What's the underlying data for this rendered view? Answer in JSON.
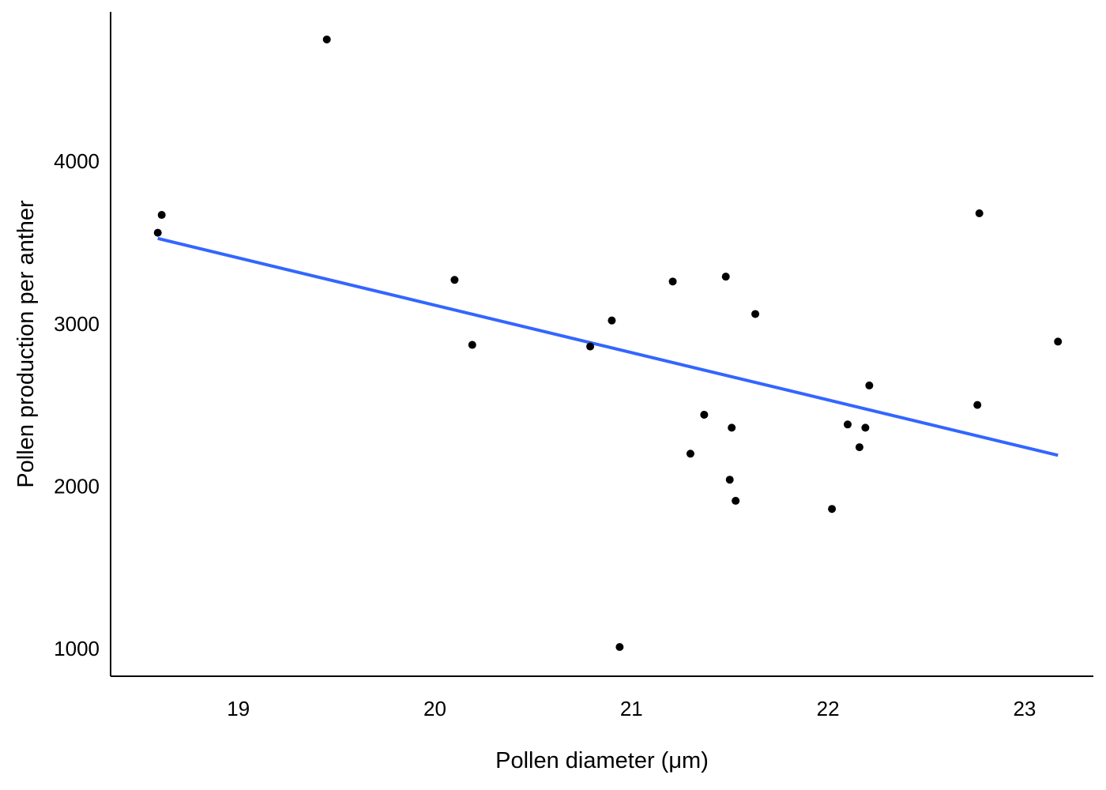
{
  "chart_data": {
    "type": "scatter",
    "title": "",
    "xlabel": "Pollen diameter (μm)",
    "ylabel": "Pollen production per anther",
    "xlim": [
      18.35,
      23.35
    ],
    "ylim": [
      830,
      4920
    ],
    "x_ticks": [
      19,
      20,
      21,
      22,
      23
    ],
    "y_ticks": [
      1000,
      2000,
      3000,
      4000
    ],
    "grid": false,
    "legend": "none",
    "colors": {
      "points": "#000000",
      "trend": "#3366ff"
    },
    "series": [
      {
        "values": [
          {
            "x": 18.59,
            "y": 3560
          },
          {
            "x": 18.61,
            "y": 3670
          },
          {
            "x": 19.45,
            "y": 4750
          },
          {
            "x": 20.1,
            "y": 3270
          },
          {
            "x": 20.19,
            "y": 2870
          },
          {
            "x": 20.79,
            "y": 2860
          },
          {
            "x": 20.9,
            "y": 3020
          },
          {
            "x": 20.94,
            "y": 1010
          },
          {
            "x": 21.21,
            "y": 3260
          },
          {
            "x": 21.3,
            "y": 2200
          },
          {
            "x": 21.37,
            "y": 2440
          },
          {
            "x": 21.48,
            "y": 3290
          },
          {
            "x": 21.5,
            "y": 2040
          },
          {
            "x": 21.51,
            "y": 2360
          },
          {
            "x": 21.53,
            "y": 1910
          },
          {
            "x": 21.63,
            "y": 3060
          },
          {
            "x": 22.02,
            "y": 1860
          },
          {
            "x": 22.1,
            "y": 2380
          },
          {
            "x": 22.16,
            "y": 2240
          },
          {
            "x": 22.19,
            "y": 2360
          },
          {
            "x": 22.21,
            "y": 2620
          },
          {
            "x": 22.76,
            "y": 2500
          },
          {
            "x": 22.77,
            "y": 3680
          },
          {
            "x": 23.17,
            "y": 2890
          }
        ]
      }
    ],
    "trend_line": {
      "x": [
        18.59,
        23.17
      ],
      "y": [
        3525,
        2190
      ]
    }
  }
}
